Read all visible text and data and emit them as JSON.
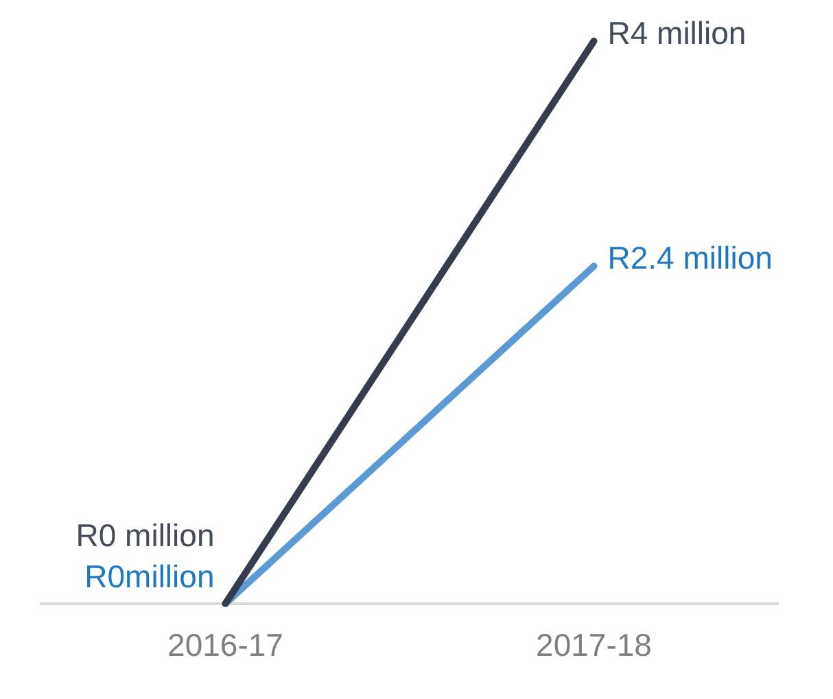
{
  "chart_data": {
    "type": "line",
    "categories": [
      "2016-17",
      "2017-18"
    ],
    "series": [
      {
        "color": "#343c4e",
        "values": [
          0,
          4000000
        ],
        "value_labels": [
          "R0 million",
          "R4 million"
        ]
      },
      {
        "color": "#5b9bd5",
        "values": [
          0,
          2400000
        ],
        "value_labels": [
          "R0million",
          "R2.4 million"
        ]
      }
    ],
    "grid": false,
    "legend": false,
    "marker": "none",
    "line_style": "solid",
    "tick_labels": "x"
  }
}
